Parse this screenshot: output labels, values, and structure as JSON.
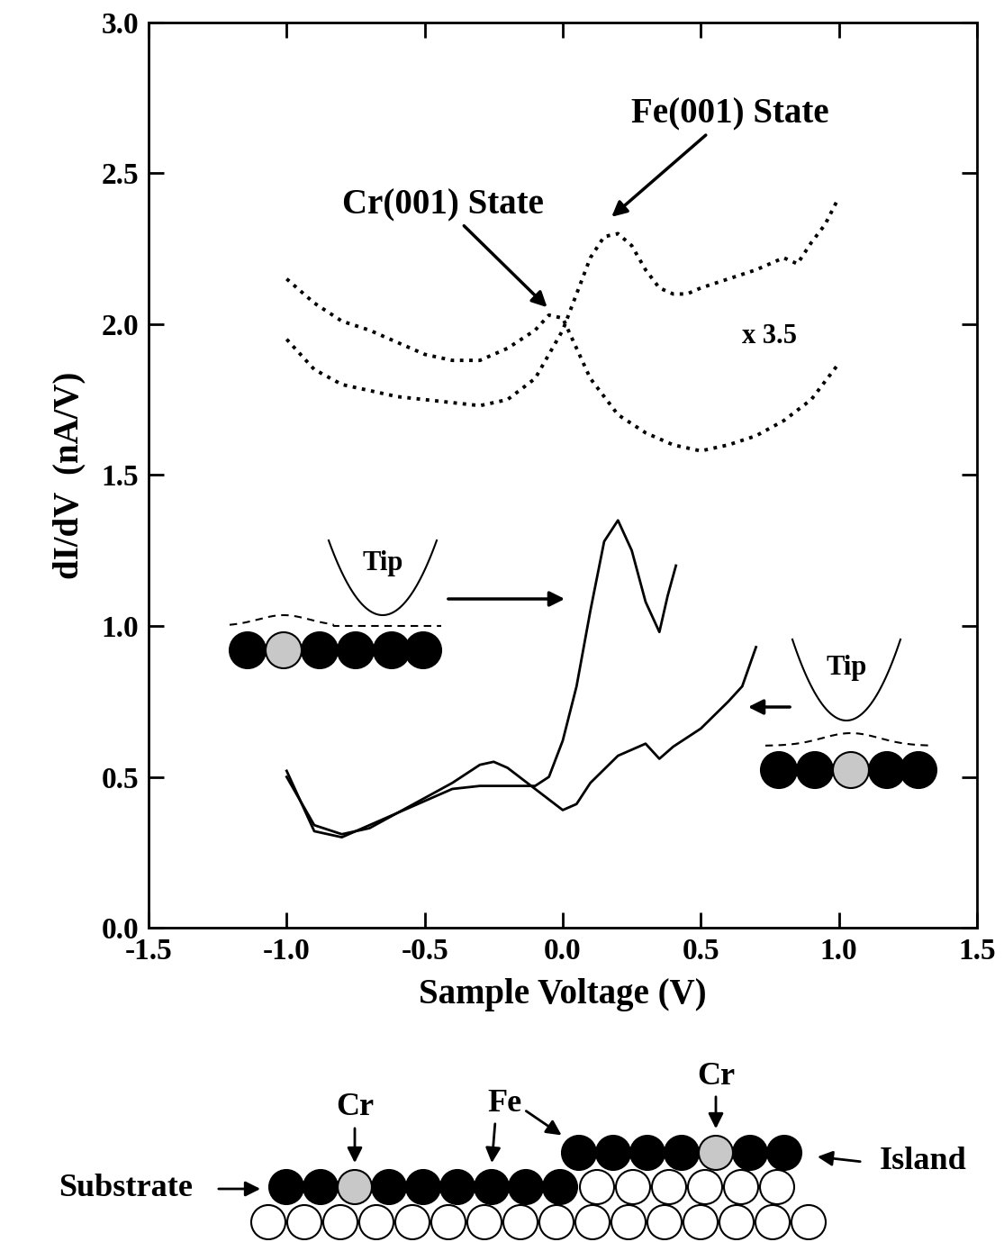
{
  "chart_data": {
    "type": "line",
    "x_label": "Sample Voltage (V)",
    "y_label": "dI/dV  (nA/V)",
    "xlim": [
      -1.5,
      1.5
    ],
    "xticks": [
      -1.5,
      -1.0,
      -0.5,
      0.0,
      0.5,
      1.0,
      1.5
    ],
    "ylim": [
      0.0,
      3.0
    ],
    "yticks": [
      0.0,
      0.5,
      1.0,
      1.5,
      2.0,
      2.5,
      3.0
    ],
    "grid": false,
    "series": [
      {
        "color": "#000000",
        "line_style": "dotted",
        "x": [
          -1.0,
          -0.9,
          -0.8,
          -0.7,
          -0.6,
          -0.5,
          -0.4,
          -0.3,
          -0.2,
          -0.1,
          0.0,
          0.05,
          0.1,
          0.15,
          0.2,
          0.25,
          0.3,
          0.35,
          0.4,
          0.45,
          0.5,
          0.6,
          0.7,
          0.8,
          0.85,
          0.9,
          0.95,
          1.0
        ],
        "values": [
          1.95,
          1.85,
          1.8,
          1.78,
          1.76,
          1.75,
          1.74,
          1.73,
          1.75,
          1.82,
          1.98,
          2.1,
          2.22,
          2.29,
          2.3,
          2.26,
          2.18,
          2.12,
          2.1,
          2.1,
          2.12,
          2.15,
          2.18,
          2.22,
          2.2,
          2.27,
          2.33,
          2.42
        ]
      },
      {
        "color": "#000000",
        "line_style": "dotted",
        "x": [
          -1.0,
          -0.9,
          -0.8,
          -0.7,
          -0.6,
          -0.5,
          -0.4,
          -0.3,
          -0.2,
          -0.1,
          -0.05,
          0.0,
          0.05,
          0.1,
          0.2,
          0.3,
          0.4,
          0.5,
          0.6,
          0.7,
          0.8,
          0.9,
          1.0
        ],
        "values": [
          2.15,
          2.07,
          2.01,
          1.98,
          1.94,
          1.9,
          1.88,
          1.88,
          1.92,
          1.98,
          2.03,
          2.02,
          1.92,
          1.82,
          1.7,
          1.64,
          1.6,
          1.58,
          1.6,
          1.63,
          1.68,
          1.75,
          1.87
        ]
      },
      {
        "color": "#000000",
        "line_style": "solid",
        "x": [
          -1.0,
          -0.95,
          -0.9,
          -0.8,
          -0.7,
          -0.6,
          -0.5,
          -0.4,
          -0.3,
          -0.2,
          -0.1,
          -0.05,
          0.0,
          0.05,
          0.1,
          0.15,
          0.2,
          0.25,
          0.3,
          0.35,
          0.38,
          0.41
        ],
        "values": [
          0.52,
          0.42,
          0.32,
          0.3,
          0.34,
          0.38,
          0.42,
          0.46,
          0.47,
          0.47,
          0.47,
          0.5,
          0.62,
          0.8,
          1.05,
          1.28,
          1.35,
          1.25,
          1.08,
          0.98,
          1.1,
          1.2
        ]
      },
      {
        "color": "#000000",
        "line_style": "solid",
        "x": [
          -1.0,
          -0.9,
          -0.8,
          -0.7,
          -0.6,
          -0.5,
          -0.4,
          -0.3,
          -0.25,
          -0.2,
          -0.1,
          0.0,
          0.05,
          0.1,
          0.2,
          0.3,
          0.35,
          0.4,
          0.5,
          0.6,
          0.65,
          0.7
        ],
        "values": [
          0.5,
          0.34,
          0.31,
          0.33,
          0.38,
          0.43,
          0.48,
          0.54,
          0.55,
          0.53,
          0.46,
          0.39,
          0.41,
          0.48,
          0.57,
          0.61,
          0.56,
          0.6,
          0.66,
          0.75,
          0.8,
          0.93
        ]
      }
    ],
    "annotations": [
      {
        "text": "Cr(001) State",
        "x": -0.05,
        "y": 2.05
      },
      {
        "text": "Fe(001) State",
        "x": 0.17,
        "y": 2.35
      },
      {
        "text": "x 3.5",
        "x": 0.65,
        "y": 1.96
      }
    ]
  },
  "diagram": {
    "insets": [
      {
        "label": "Tip"
      },
      {
        "label": "Tip"
      }
    ],
    "labels": {
      "substrate": "Substrate",
      "island": "Island",
      "cr_substrate": "Cr",
      "fe": "Fe",
      "cr_island": "Cr"
    }
  }
}
